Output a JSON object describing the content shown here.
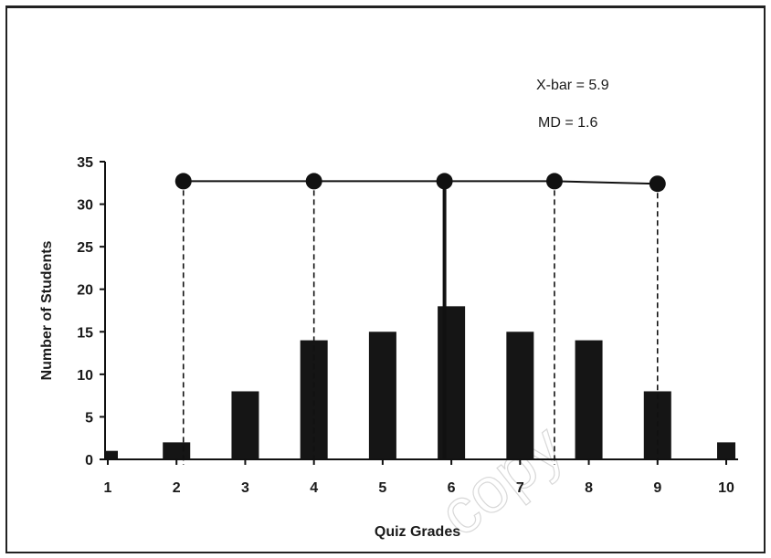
{
  "chart_data": {
    "type": "bar",
    "xlabel": "Quiz Grades",
    "ylabel": "Number of Students",
    "categories": [
      "1",
      "2",
      "3",
      "4",
      "5",
      "6",
      "7",
      "8",
      "9",
      "10"
    ],
    "x": [
      1,
      2,
      3,
      4,
      5,
      6,
      7,
      8,
      9,
      10
    ],
    "values": [
      1,
      2,
      8,
      14,
      15,
      18,
      15,
      14,
      8,
      2
    ],
    "ylim": [
      0,
      35
    ],
    "yticks": [
      0,
      5,
      10,
      15,
      20,
      25,
      30,
      35
    ],
    "grid": false,
    "mean_line": {
      "x": 5.9
    },
    "deviation_markers": {
      "x": [
        2.1,
        4.0,
        5.9,
        7.5,
        9.0
      ],
      "y": [
        32.7,
        32.7,
        32.7,
        32.7,
        32.4
      ]
    },
    "annotations": [
      "X-bar = 5.9",
      "MD = 1.6"
    ],
    "watermark": "copy"
  }
}
